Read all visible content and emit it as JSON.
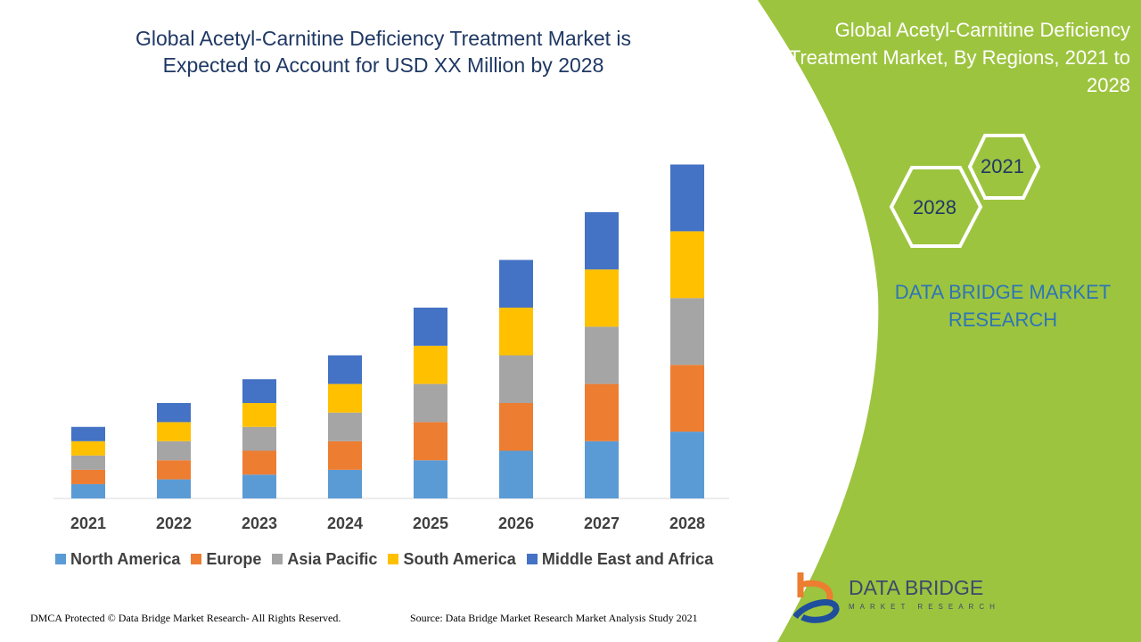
{
  "title": "Global Acetyl-Carnitine Deficiency Treatment Market is Expected to Account for USD XX Million by 2028",
  "side_panel": {
    "title": "Global Acetyl-Carnitine Deficiency Treatment Market, By Regions, 2021 to 2028",
    "hex_1": "2021",
    "hex_2": "2028",
    "brand": "DATA BRIDGE MARKET RESEARCH",
    "color": "#9DC43F"
  },
  "logo": {
    "name": "DATA BRIDGE",
    "sub": "MARKET RESEARCH"
  },
  "footer": {
    "left": "DMCA Protected © Data Bridge Market Research- All Rights Reserved.",
    "right": "Source: Data Bridge Market Research Market Analysis Study 2021"
  },
  "chart_data": {
    "type": "bar",
    "stacked": true,
    "categories": [
      "2021",
      "2022",
      "2023",
      "2024",
      "2025",
      "2026",
      "2027",
      "2028"
    ],
    "series": [
      {
        "name": "North America",
        "color": "#5B9BD5",
        "values": [
          3,
          4,
          5,
          6,
          8,
          10,
          12,
          14
        ]
      },
      {
        "name": "Europe",
        "color": "#ED7D31",
        "values": [
          3,
          4,
          5,
          6,
          8,
          10,
          12,
          14
        ]
      },
      {
        "name": "Asia Pacific",
        "color": "#A5A5A5",
        "values": [
          3,
          4,
          5,
          6,
          8,
          10,
          12,
          14
        ]
      },
      {
        "name": "South America",
        "color": "#FFC000",
        "values": [
          3,
          4,
          5,
          6,
          8,
          10,
          12,
          14
        ]
      },
      {
        "name": "Middle East and Africa",
        "color": "#4472C4",
        "values": [
          3,
          4,
          5,
          6,
          8,
          10,
          12,
          14
        ]
      }
    ],
    "legend": "bottom",
    "grid": false,
    "y_axis_shown": false
  }
}
